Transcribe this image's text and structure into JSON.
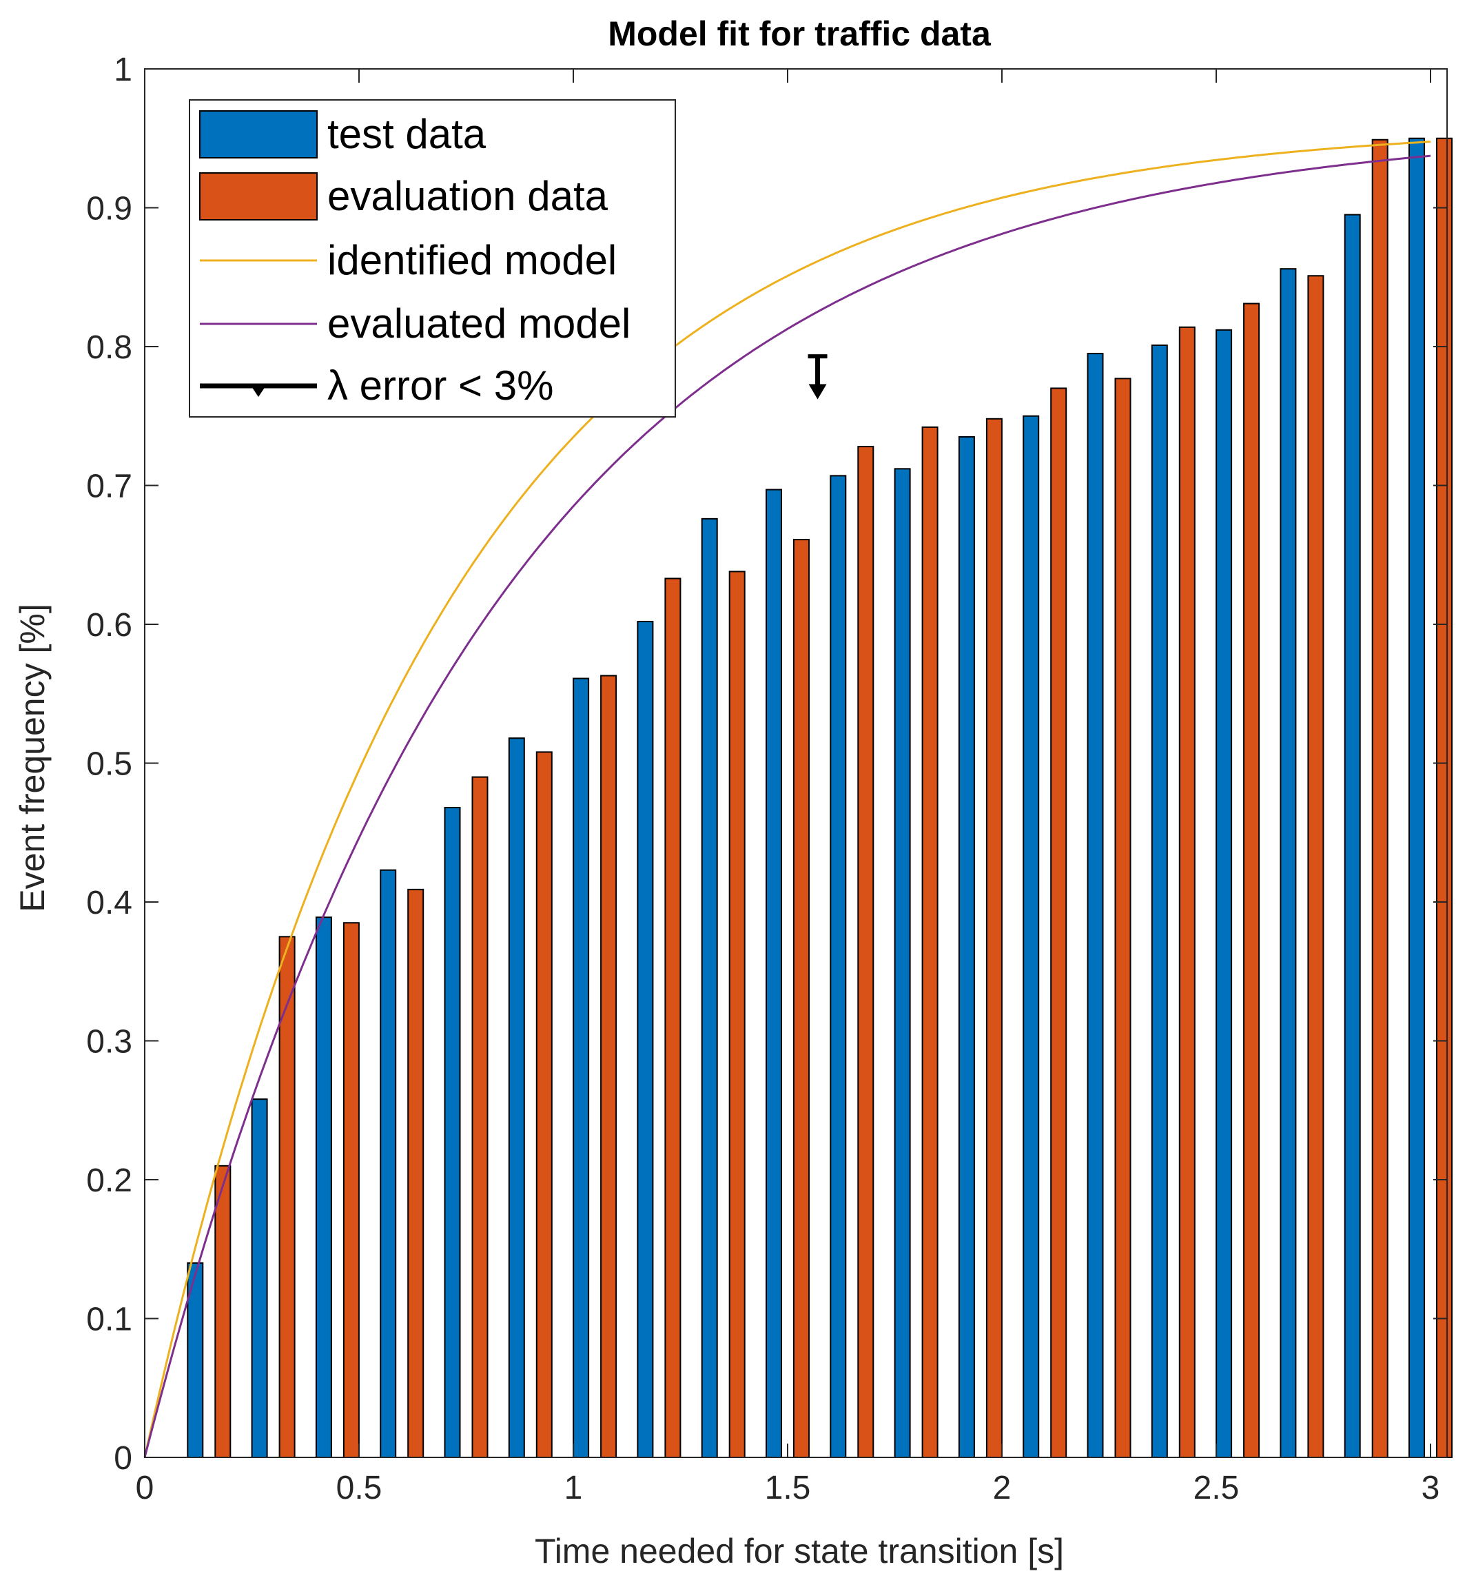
{
  "chart_data": {
    "type": "bar",
    "title": "Model fit for traffic data",
    "xlabel": "Time needed for state transition [s]",
    "ylabel": "Event frequency [%]",
    "xlim": [
      0,
      3.05
    ],
    "ylim": [
      0,
      1
    ],
    "xticks": [
      0,
      0.5,
      1,
      1.5,
      2,
      2.5,
      3
    ],
    "xtick_labels": [
      "0",
      "0.5",
      "1",
      "1.5",
      "2",
      "2.5",
      "3"
    ],
    "yticks": [
      0,
      0.1,
      0.2,
      0.3,
      0.4,
      0.5,
      0.6,
      0.7,
      0.8,
      0.9,
      1
    ],
    "ytick_labels": [
      "0",
      "0.1",
      "0.2",
      "0.3",
      "0.4",
      "0.5",
      "0.6",
      "0.7",
      "0.8",
      "0.9",
      "1"
    ],
    "x": [
      0.15,
      0.3,
      0.45,
      0.6,
      0.75,
      0.9,
      1.05,
      1.2,
      1.35,
      1.5,
      1.65,
      1.8,
      1.95,
      2.1,
      2.25,
      2.4,
      2.55,
      2.7,
      2.85,
      3.0
    ],
    "series": [
      {
        "name": "test data",
        "color": "#0072bd",
        "values": [
          0.14,
          0.258,
          0.389,
          0.423,
          0.468,
          0.518,
          0.561,
          0.602,
          0.676,
          0.697,
          0.707,
          0.712,
          0.735,
          0.75,
          0.795,
          0.801,
          0.812,
          0.856,
          0.895,
          0.95
        ]
      },
      {
        "name": "evaluation data",
        "color": "#d95319",
        "values": [
          0.21,
          0.375,
          0.385,
          0.409,
          0.49,
          0.508,
          0.563,
          0.633,
          0.638,
          0.661,
          0.728,
          0.742,
          0.748,
          0.77,
          0.777,
          0.814,
          0.831,
          0.851,
          0.949,
          0.95
        ]
      }
    ],
    "curves": [
      {
        "name": "identified model",
        "color": "#edb120",
        "a": 0.96,
        "lambda": 1.45
      },
      {
        "name": "evaluated model",
        "color": "#7e2f8e",
        "a": 0.96,
        "lambda": 1.25
      }
    ],
    "error_marker": {
      "name": "λ error < 3%",
      "x": 1.57,
      "y_top": 0.793,
      "y_bottom": 0.764,
      "color": "#000000"
    },
    "legend": {
      "location": "top-left",
      "entries": [
        "test data",
        "evaluation data",
        "identified model",
        "evaluated model",
        "λ error < 3%"
      ]
    },
    "grid": false
  }
}
